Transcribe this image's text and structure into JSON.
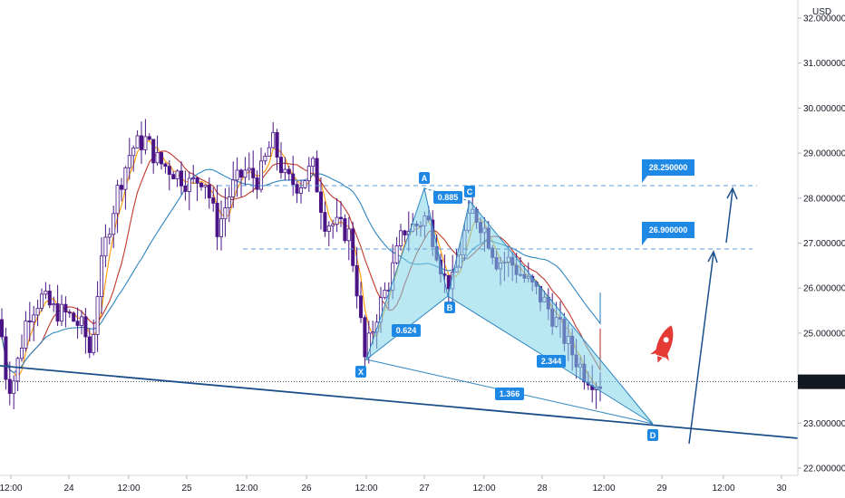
{
  "chart_data": {
    "type": "candlestick",
    "currency": "USD",
    "current_price": "23.918877",
    "y_ticks": [
      "32.000000",
      "31.000000",
      "30.000000",
      "29.000000",
      "28.000000",
      "27.000000",
      "26.000000",
      "25.000000",
      "24.000000",
      "23.000000",
      "22.000000"
    ],
    "y_tick_values": [
      32,
      31,
      30,
      29,
      28,
      27,
      26,
      25,
      24,
      23,
      22
    ],
    "x_ticks": [
      "12:00",
      "24",
      "12:00",
      "25",
      "12:00",
      "26",
      "12:00",
      "27",
      "12:00",
      "28",
      "12:00",
      "29",
      "12:00",
      "30"
    ],
    "harmonic_points": {
      "X": "X",
      "A": "A",
      "B": "B",
      "C": "C",
      "D": "D"
    },
    "harmonic_ratios": [
      "0.624",
      "0.885",
      "2.344",
      "1.366"
    ],
    "targets": [
      "28.250000",
      "26.900000"
    ],
    "colors": {
      "candle": "#4a1486",
      "ma_fast": "#ff9800",
      "ma_mid": "#c0392b",
      "ma_slow": "#2e86c1",
      "pattern_fill": "#7fd3e8",
      "pattern_stroke": "#2e86c1",
      "label_bg": "#1e88e5",
      "trend": "#1a4f8a",
      "rocket": "#e53935"
    }
  }
}
